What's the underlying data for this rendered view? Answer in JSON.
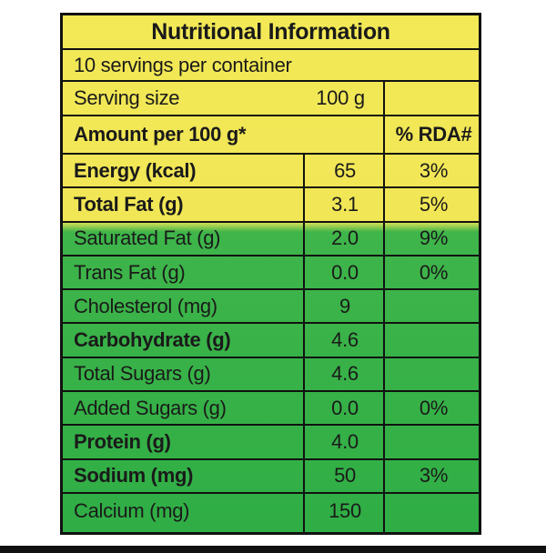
{
  "title": "Nutritional Information",
  "servings": "10 servings per container",
  "serving_size": {
    "label": "Serving size",
    "value": "100 g"
  },
  "amount_header": {
    "label": "Amount per 100 g*",
    "rda": "% RDA#"
  },
  "rows": [
    {
      "name": "Energy (kcal)",
      "value": "65",
      "rda": "3%",
      "bold": true
    },
    {
      "name": "Total Fat (g)",
      "value": "3.1",
      "rda": "5%",
      "bold": true
    },
    {
      "name": "Saturated Fat (g)",
      "value": "2.0",
      "rda": "9%",
      "bold": false
    },
    {
      "name": "Trans Fat (g)",
      "value": "0.0",
      "rda": "0%",
      "bold": false
    },
    {
      "name": "Cholesterol (mg)",
      "value": "9",
      "rda": "",
      "bold": false
    },
    {
      "name": "Carbohydrate (g)",
      "value": "4.6",
      "rda": "",
      "bold": true
    },
    {
      "name": "Total Sugars (g)",
      "value": "4.6",
      "rda": "",
      "bold": false
    },
    {
      "name": "Added Sugars (g)",
      "value": "0.0",
      "rda": "0%",
      "bold": false
    },
    {
      "name": "Protein (g)",
      "value": "4.0",
      "rda": "",
      "bold": true
    },
    {
      "name": "Sodium (mg)",
      "value": "50",
      "rda": "3%",
      "bold": true
    },
    {
      "name": "Calcium (mg)",
      "value": "150",
      "rda": "",
      "bold": false
    }
  ]
}
